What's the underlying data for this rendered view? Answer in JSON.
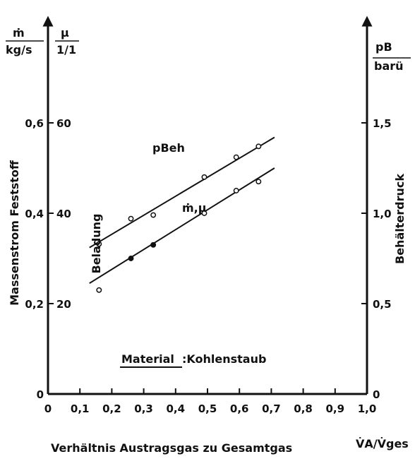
{
  "chart_data": {
    "type": "scatter",
    "xlabel": "Verhältnis Austragsgas zu Gesamtgas",
    "xunit": "V̇A/V̇ges",
    "xlim": [
      0,
      1.0
    ],
    "xticks": [
      "0",
      "0,1",
      "0,2",
      "0,3",
      "0,4",
      "0,5",
      "0,6",
      "0,7",
      "0,8",
      "0,9",
      "1,0"
    ],
    "y_left_massflow": {
      "label": "Massenstrom Feststoff",
      "unit_num": "ṁ",
      "unit_den": "kg/s",
      "ylim": [
        0,
        0.7
      ],
      "ticks": [
        "0",
        "0,2",
        "0,4",
        "0,6"
      ]
    },
    "y_left_loading": {
      "label": "Beladung",
      "unit_num": "μ",
      "unit_den": "1/1",
      "ticks": [
        "20",
        "40",
        "60"
      ]
    },
    "y_right": {
      "label": "Behälterdruck",
      "unit_num": "pB",
      "unit_den": "barü",
      "ylim": [
        0,
        1.75
      ],
      "ticks": [
        "0",
        "0,5",
        "1,0",
        "1,5"
      ]
    },
    "series": [
      {
        "name": "pBeh",
        "axis": "right",
        "x": [
          0.16,
          0.26,
          0.33,
          0.49,
          0.59,
          0.66
        ],
        "y": [
          0.83,
          0.97,
          0.99,
          1.2,
          1.31,
          1.37
        ],
        "fit": {
          "x": [
            0.13,
            0.71
          ],
          "y": [
            0.81,
            1.42
          ]
        }
      },
      {
        "name": "ṁ,μ",
        "axis": "left",
        "x": [
          0.16,
          0.26,
          0.33,
          0.49,
          0.59,
          0.66
        ],
        "y": [
          0.23,
          0.3,
          0.33,
          0.4,
          0.45,
          0.47
        ],
        "filled": [
          false,
          true,
          true,
          false,
          false,
          false
        ],
        "fit": {
          "x": [
            0.13,
            0.71
          ],
          "y": [
            0.245,
            0.5
          ]
        }
      }
    ],
    "annotation_label": "Material",
    "annotation_value": ":Kohlenstaub"
  }
}
